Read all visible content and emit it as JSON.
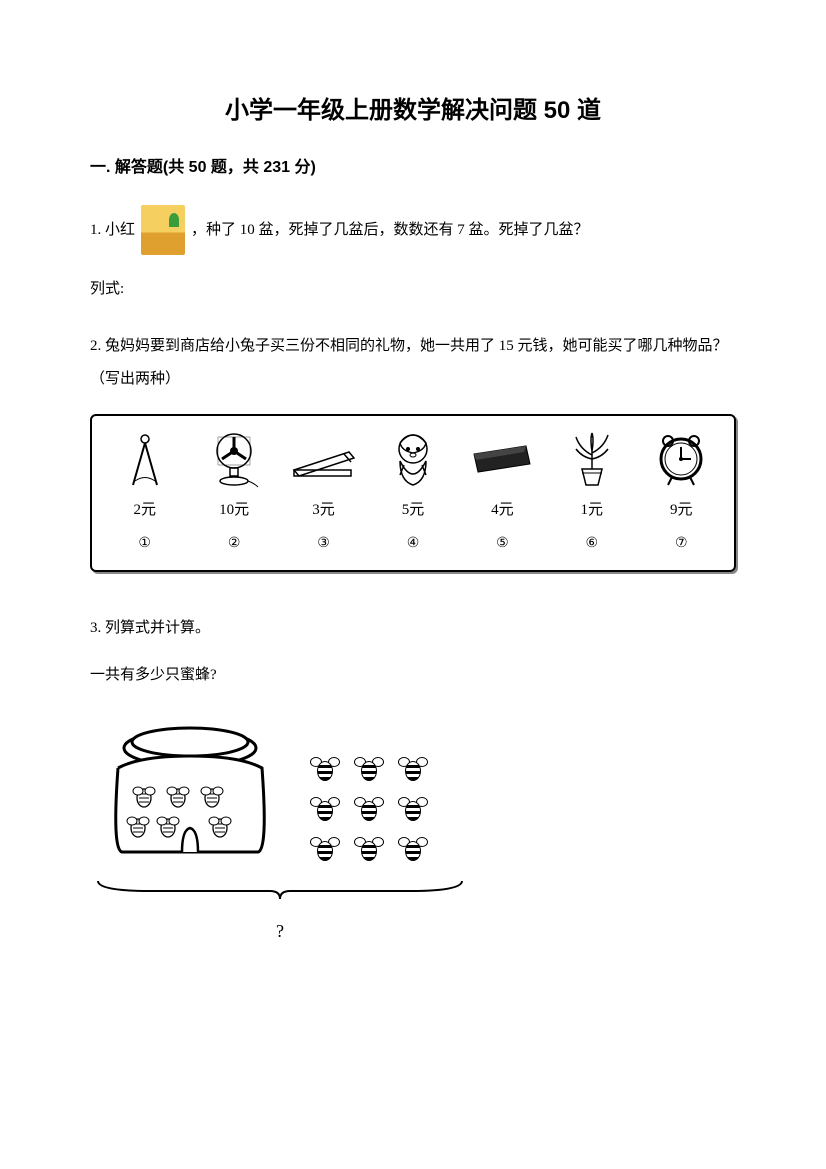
{
  "title": "小学一年级上册数学解决问题 50 道",
  "section": {
    "label": "一. 解答题(共 50 题，共 231 分)"
  },
  "q1": {
    "prefix": "1. 小红",
    "suffix": "，种了 10 盆，死掉了几盆后，数数还有 7 盆。死掉了几盆？",
    "formula_label": "列式:"
  },
  "q2": {
    "text": "2. 兔妈妈要到商店给小兔子买三份不相同的礼物，她一共用了 15 元钱，她可能买了哪几种物品？（写出两种）",
    "items": [
      {
        "name": "compass-icon",
        "price": "2元",
        "num": "①"
      },
      {
        "name": "fan-icon",
        "price": "10元",
        "num": "②"
      },
      {
        "name": "stapler-icon",
        "price": "3元",
        "num": "③"
      },
      {
        "name": "doll-icon",
        "price": "5元",
        "num": "④"
      },
      {
        "name": "wallet-icon",
        "price": "4元",
        "num": "⑤"
      },
      {
        "name": "plant-icon",
        "price": "1元",
        "num": "⑥"
      },
      {
        "name": "clock-icon",
        "price": "9元",
        "num": "⑦"
      }
    ]
  },
  "q3": {
    "text": "3. 列算式并计算。",
    "sub": "一共有多少只蜜蜂?",
    "hive_bees": 6,
    "grid_bees": 9,
    "qmark": "?"
  },
  "colors": {
    "text": "#000000",
    "background": "#ffffff",
    "border": "#000000"
  }
}
